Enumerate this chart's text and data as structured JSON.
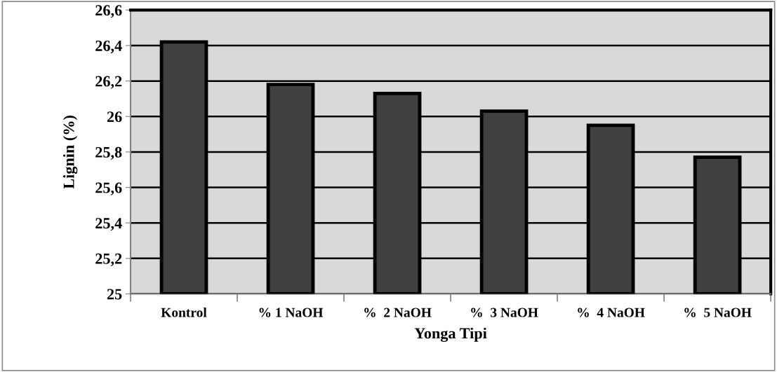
{
  "chart_data": {
    "type": "bar",
    "xlabel": "Yonga Tipi",
    "ylabel": "Lignin (%)",
    "categories": [
      "Kontrol",
      "% 1 NaOH",
      "%  2 NaOH",
      "%  3 NaOH",
      "%  4 NaOH",
      "%  5 NaOH"
    ],
    "values": [
      26.42,
      26.18,
      26.13,
      26.03,
      25.95,
      25.77
    ],
    "color": "#404040",
    "ylim": [
      25,
      26.6
    ],
    "yticks": [
      {
        "value": 25,
        "label": "25"
      },
      {
        "value": 25.2,
        "label": "25,2"
      },
      {
        "value": 25.4,
        "label": "25,4"
      },
      {
        "value": 25.6,
        "label": "25,6"
      },
      {
        "value": 25.8,
        "label": "25,8"
      },
      {
        "value": 26,
        "label": "26"
      },
      {
        "value": 26.2,
        "label": "26,2"
      },
      {
        "value": 26.4,
        "label": "26,4"
      },
      {
        "value": 26.6,
        "label": "26,6"
      }
    ],
    "grid": "y"
  }
}
